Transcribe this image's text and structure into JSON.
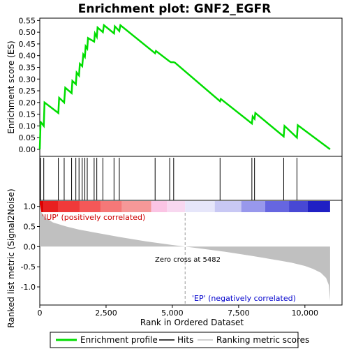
{
  "chart_data": {
    "type": "line",
    "title": "Enrichment plot: GNF2_EGFR",
    "colors": {
      "enrichment_line": "#00dd00",
      "hit_line": "#000000",
      "metric_fill": "#c0c0c0",
      "positive_label": "#cc0000",
      "negative_label": "#0000cc"
    },
    "top_panel": {
      "ylabel": "Enrichment score (ES)",
      "ylim": [
        -0.03,
        0.56
      ],
      "yticks": [
        0.0,
        0.05,
        0.1,
        0.15,
        0.2,
        0.25,
        0.3,
        0.35,
        0.4,
        0.45,
        0.5,
        0.55
      ],
      "ytick_labels": [
        "0.00",
        "0.05",
        "0.10",
        "0.15",
        "0.20",
        "0.25",
        "0.30",
        "0.35",
        "0.40",
        "0.45",
        "0.50",
        "0.55"
      ],
      "series": [
        {
          "name": "Enrichment profile",
          "x": [
            0,
            30,
            45,
            150,
            180,
            700,
            730,
            920,
            960,
            1200,
            1230,
            1360,
            1390,
            1480,
            1510,
            1600,
            1640,
            1700,
            1730,
            1790,
            1820,
            2050,
            2080,
            2150,
            2180,
            2380,
            2420,
            2800,
            2830,
            3000,
            3040,
            4350,
            4380,
            4900,
            4950,
            5050,
            5100,
            6800,
            6830,
            8000,
            8030,
            8100,
            8130,
            9200,
            9230,
            9700,
            9730,
            10950
          ],
          "y": [
            0.0,
            0.11,
            0.115,
            0.1,
            0.2,
            0.155,
            0.22,
            0.2,
            0.263,
            0.24,
            0.292,
            0.278,
            0.328,
            0.315,
            0.365,
            0.355,
            0.405,
            0.395,
            0.44,
            0.43,
            0.475,
            0.46,
            0.495,
            0.48,
            0.52,
            0.5,
            0.53,
            0.495,
            0.525,
            0.505,
            0.53,
            0.41,
            0.42,
            0.375,
            0.372,
            0.372,
            0.37,
            0.205,
            0.215,
            0.11,
            0.14,
            0.13,
            0.155,
            0.055,
            0.1,
            0.05,
            0.103,
            0.0
          ]
        }
      ]
    },
    "hits": [
      30,
      150,
      700,
      920,
      1200,
      1360,
      1480,
      1600,
      1700,
      1790,
      2050,
      2150,
      2380,
      2800,
      3000,
      4350,
      4900,
      5050,
      6800,
      8000,
      8100,
      9200,
      9700
    ],
    "bottom_panel": {
      "ylabel": "Ranked list metric (Signal2Noise)",
      "xlabel": "Rank in Ordered Dataset",
      "ylim": [
        -1.45,
        1.15
      ],
      "yticks": [
        1.0,
        0.5,
        0.0,
        -0.5,
        -1.0
      ],
      "ytick_labels": [
        "1.0",
        "0.5",
        "0.0",
        "-0.5",
        "-1.0"
      ],
      "metric_curve": {
        "x": [
          0,
          60,
          200,
          500,
          1000,
          1500,
          2000,
          3000,
          4000,
          5000,
          5482,
          6000,
          7000,
          8000,
          9000,
          9500,
          10000,
          10300,
          10600,
          10800,
          10900,
          10950
        ],
        "y": [
          1.05,
          0.85,
          0.72,
          0.6,
          0.5,
          0.42,
          0.36,
          0.24,
          0.13,
          0.04,
          0.0,
          -0.04,
          -0.13,
          -0.23,
          -0.34,
          -0.4,
          -0.48,
          -0.55,
          -0.65,
          -0.78,
          -0.95,
          -1.35
        ]
      },
      "zero_cross_label": "Zero cross at 5482",
      "zero_cross": 5482,
      "positive_label": "'IUP' (positively correlated)",
      "negative_label": "'EP' (negatively correlated)"
    },
    "xaxis": {
      "xlim": [
        0,
        11400
      ],
      "xticks": [
        0,
        2500,
        5000,
        7500,
        10000
      ],
      "xtick_labels": [
        "0",
        "2,500",
        "5,000",
        "7,500",
        "10,000"
      ]
    },
    "heatmap_bar": {
      "segments": [
        {
          "from": 0,
          "to": 150,
          "color": "#dd0000"
        },
        {
          "from": 150,
          "to": 700,
          "color": "#e82020"
        },
        {
          "from": 700,
          "to": 1500,
          "color": "#f03a3a"
        },
        {
          "from": 1500,
          "to": 2300,
          "color": "#f45858"
        },
        {
          "from": 2300,
          "to": 3100,
          "color": "#f57878"
        },
        {
          "from": 3100,
          "to": 4200,
          "color": "#f59898"
        },
        {
          "from": 4200,
          "to": 4800,
          "color": "#fbc4e4"
        },
        {
          "from": 4800,
          "to": 5482,
          "color": "#f8d8f0"
        },
        {
          "from": 5482,
          "to": 6600,
          "color": "#e6e6fa"
        },
        {
          "from": 6600,
          "to": 7600,
          "color": "#c8c8f4"
        },
        {
          "from": 7600,
          "to": 8500,
          "color": "#9898ec"
        },
        {
          "from": 8500,
          "to": 9400,
          "color": "#6666e0"
        },
        {
          "from": 9400,
          "to": 10100,
          "color": "#4848d4"
        },
        {
          "from": 10100,
          "to": 10950,
          "color": "#2020c4"
        }
      ]
    },
    "legend": {
      "placement": "bottom",
      "items": [
        {
          "label": "Enrichment profile",
          "kind": "line",
          "color": "#00dd00"
        },
        {
          "label": "Hits",
          "kind": "line",
          "color": "#000000"
        },
        {
          "label": "Ranking metric scores",
          "kind": "line",
          "color": "#c0c0c0"
        }
      ]
    }
  }
}
